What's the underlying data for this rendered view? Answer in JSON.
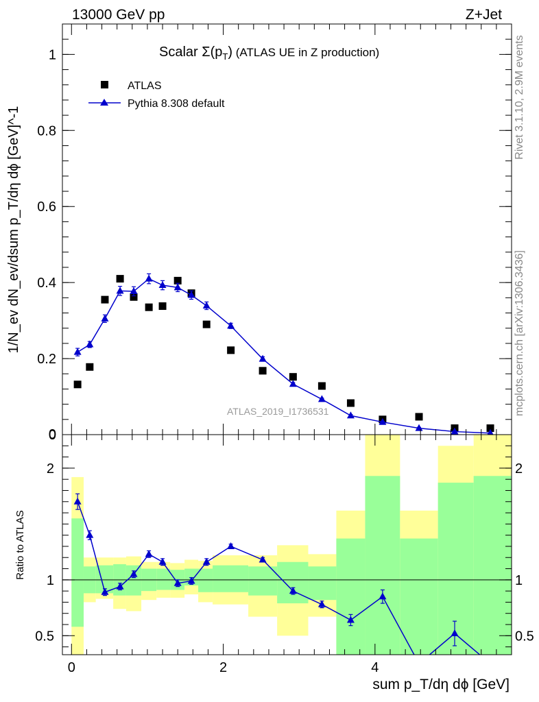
{
  "header": {
    "left": "13000 GeV pp",
    "right": "Z+Jet"
  },
  "side_labels": {
    "rivet": "Rivet 3.1.10,  2.9M events",
    "mcplots": "mcplots.cern.ch [arXiv:1306.3436]"
  },
  "colors": {
    "atlas": "#000000",
    "pythia": "#0000cc",
    "band_yellow": "#ffff99",
    "band_green": "#99ff99"
  },
  "chart_data": [
    {
      "type": "scatter",
      "title_prefix": "Scalar ",
      "title_sigma": "Σ(p",
      "title_sub": "T",
      "title_close": ")",
      "title_suffix": " (ATLAS UE in Z production)",
      "ylabel": "1/N_ev dN_ev/dsum p_T/dη dϕ [GeV]^-1",
      "watermark": "ATLAS_2019_I1736531",
      "xlim": [
        -0.12,
        5.8
      ],
      "ylim": [
        0,
        1.08
      ],
      "yticks": [
        0,
        0.2,
        0.4,
        0.6,
        0.8,
        1
      ],
      "ytick_labels": [
        "0",
        "0.2",
        "0.4",
        "0.6",
        "0.8",
        "1"
      ],
      "legend": {
        "placement": "top-left",
        "entries": [
          "ATLAS",
          "Pythia 8.308 default"
        ]
      },
      "series": [
        {
          "name": "ATLAS",
          "marker": "square",
          "x": [
            0.08,
            0.24,
            0.44,
            0.64,
            0.82,
            1.02,
            1.2,
            1.4,
            1.58,
            1.78,
            2.1,
            2.52,
            2.92,
            3.3,
            3.68,
            4.1,
            4.58,
            5.05,
            5.52
          ],
          "y": [
            0.132,
            0.178,
            0.355,
            0.41,
            0.362,
            0.335,
            0.338,
            0.405,
            0.372,
            0.29,
            0.222,
            0.168,
            0.152,
            0.128,
            0.083,
            0.04,
            0.047,
            0.017,
            0.017
          ]
        },
        {
          "name": "Pythia 8.308 default",
          "marker": "triangle",
          "x": [
            0.08,
            0.24,
            0.44,
            0.64,
            0.82,
            1.02,
            1.2,
            1.4,
            1.58,
            1.78,
            2.1,
            2.52,
            2.92,
            3.3,
            3.68,
            4.1,
            4.58,
            5.05,
            5.52
          ],
          "y": [
            0.217,
            0.237,
            0.305,
            0.378,
            0.377,
            0.41,
            0.393,
            0.387,
            0.367,
            0.339,
            0.286,
            0.199,
            0.133,
            0.093,
            0.05,
            0.033,
            0.017,
            0.008,
            0.004
          ],
          "yerr": [
            0.01,
            0.008,
            0.01,
            0.012,
            0.012,
            0.013,
            0.012,
            0.011,
            0.011,
            0.01,
            0.007,
            0.006,
            0.004,
            0.003,
            0.003,
            0.002,
            0.002,
            0.001,
            0.001
          ]
        }
      ]
    },
    {
      "type": "line",
      "ylabel": "Ratio to ATLAS",
      "xlabel": "sum p_T/dη dϕ [GeV]",
      "xlim": [
        -0.12,
        5.8
      ],
      "ylim": [
        0.33,
        2.3
      ],
      "xticks": [
        0,
        2,
        4
      ],
      "xtick_labels": [
        "0",
        "2",
        "4"
      ],
      "yticks": [
        0.5,
        1,
        2
      ],
      "ytick_labels": [
        "0.5",
        "1",
        "2"
      ],
      "reference_line": 1,
      "bands": {
        "edges": [
          0,
          0.16,
          0.32,
          0.55,
          0.72,
          0.92,
          1.12,
          1.3,
          1.49,
          1.67,
          1.86,
          2.33,
          2.71,
          3.12,
          3.49,
          3.87,
          4.33,
          4.83,
          5.3,
          5.8
        ],
        "yellow_lo": [
          0.33,
          0.8,
          0.83,
          0.74,
          0.72,
          0.82,
          0.84,
          0.84,
          0.87,
          0.8,
          0.78,
          0.67,
          0.5,
          0.67,
          0.33,
          0.33,
          0.33,
          0.33,
          0.33
        ],
        "yellow_hi": [
          1.92,
          1.2,
          1.2,
          1.2,
          1.21,
          1.16,
          1.16,
          1.15,
          1.18,
          1.17,
          1.22,
          1.22,
          1.31,
          1.23,
          1.62,
          2.3,
          1.62,
          2.2,
          2.3
        ],
        "green_lo": [
          0.58,
          0.88,
          0.88,
          0.86,
          0.86,
          0.9,
          0.91,
          0.91,
          0.95,
          0.89,
          0.89,
          0.86,
          0.79,
          0.82,
          0.33,
          0.33,
          0.33,
          0.33,
          0.33
        ],
        "green_hi": [
          1.55,
          1.12,
          1.13,
          1.14,
          1.13,
          1.1,
          1.1,
          1.09,
          1.1,
          1.1,
          1.13,
          1.12,
          1.16,
          1.12,
          1.37,
          1.93,
          1.37,
          1.87,
          1.93
        ]
      },
      "series": [
        {
          "name": "Pythia 8.308 default",
          "x": [
            0.08,
            0.24,
            0.44,
            0.64,
            0.82,
            1.02,
            1.2,
            1.4,
            1.58,
            1.78,
            2.1,
            2.52,
            2.92,
            3.3,
            3.68,
            4.1,
            4.58,
            5.05,
            5.52
          ],
          "y": [
            1.7,
            1.4,
            0.89,
            0.94,
            1.05,
            1.23,
            1.16,
            0.97,
            0.99,
            1.16,
            1.3,
            1.18,
            0.9,
            0.78,
            0.64,
            0.85,
            0.25,
            0.52,
            0.25
          ],
          "yerr": [
            0.07,
            0.04,
            0.03,
            0.03,
            0.03,
            0.03,
            0.03,
            0.03,
            0.03,
            0.03,
            0.02,
            0.02,
            0.03,
            0.03,
            0.05,
            0.06,
            0.05,
            0.11,
            0.05
          ]
        }
      ]
    }
  ]
}
